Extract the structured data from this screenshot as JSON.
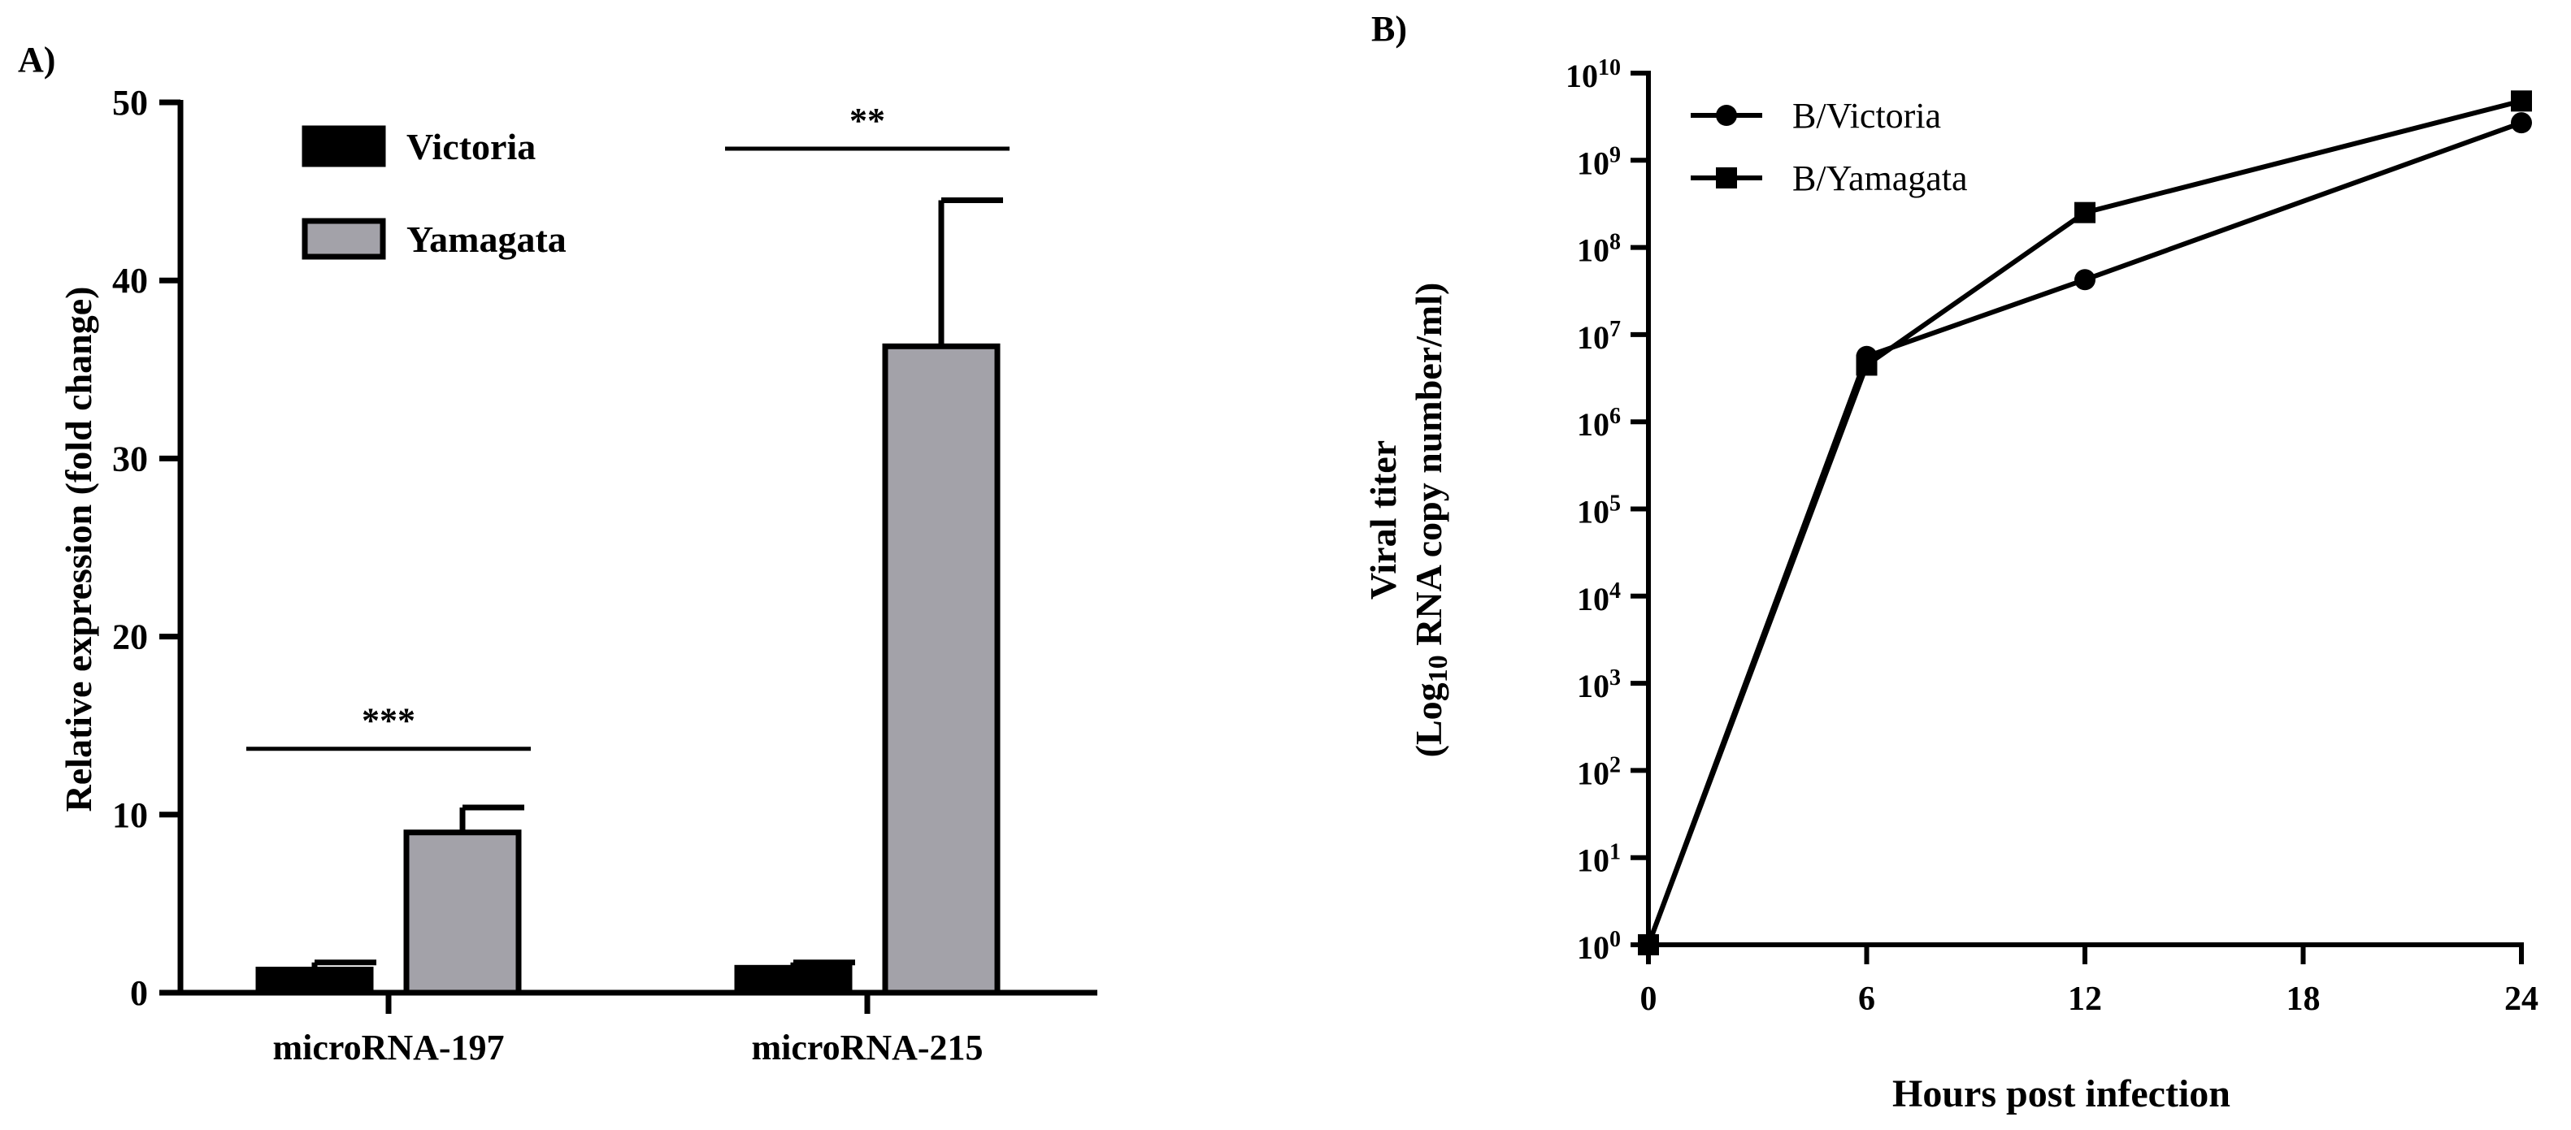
{
  "chart_data": [
    {
      "panel_label": "A)",
      "type": "bar",
      "categories": [
        "microRNA-197",
        "microRNA-215"
      ],
      "series": [
        {
          "name": "Victoria",
          "color": "#000000",
          "values": [
            1.3,
            1.4
          ],
          "errors": [
            0.4,
            0.3
          ]
        },
        {
          "name": "Yamagata",
          "color": "#a3a2a9",
          "values": [
            9.0,
            36.3
          ],
          "errors": [
            1.4,
            8.2
          ]
        }
      ],
      "ylabel": "Relative expression (fold change)",
      "xlabel": "",
      "ylim": [
        0,
        50
      ],
      "yticks": [
        "0",
        "10",
        "20",
        "30",
        "40",
        "50"
      ],
      "legend_position": "top-left",
      "significance": [
        {
          "category": "microRNA-197",
          "label": "***",
          "bar_level": 13.7
        },
        {
          "category": "microRNA-215",
          "label": "**",
          "bar_level": 47.4
        }
      ]
    },
    {
      "panel_label": "B)",
      "type": "line",
      "x": [
        0,
        6,
        12,
        24
      ],
      "series": [
        {
          "name": "B/Victoria",
          "marker": "circle",
          "values_log10": [
            0,
            6.75,
            7.63,
            9.43
          ]
        },
        {
          "name": "B/Yamagata",
          "marker": "square",
          "values_log10": [
            0,
            6.65,
            8.4,
            9.68
          ]
        }
      ],
      "xlabel": "Hours post infection",
      "ylabel_line1": "Viral titer",
      "ylabel_line2_prefix": "(Log",
      "ylabel_line2_sub": "10",
      "ylabel_line2_suffix": " RNA copy number/ml)",
      "xlim": [
        0,
        24
      ],
      "xticks": [
        "0",
        "6",
        "12",
        "18",
        "24"
      ],
      "ylim_log10": [
        0,
        10
      ],
      "yscale": "log",
      "ytick_base": "10",
      "ytick_exponents": [
        "0",
        "1",
        "2",
        "3",
        "4",
        "5",
        "6",
        "7",
        "8",
        "9",
        "10"
      ],
      "legend_position": "top-left"
    }
  ]
}
